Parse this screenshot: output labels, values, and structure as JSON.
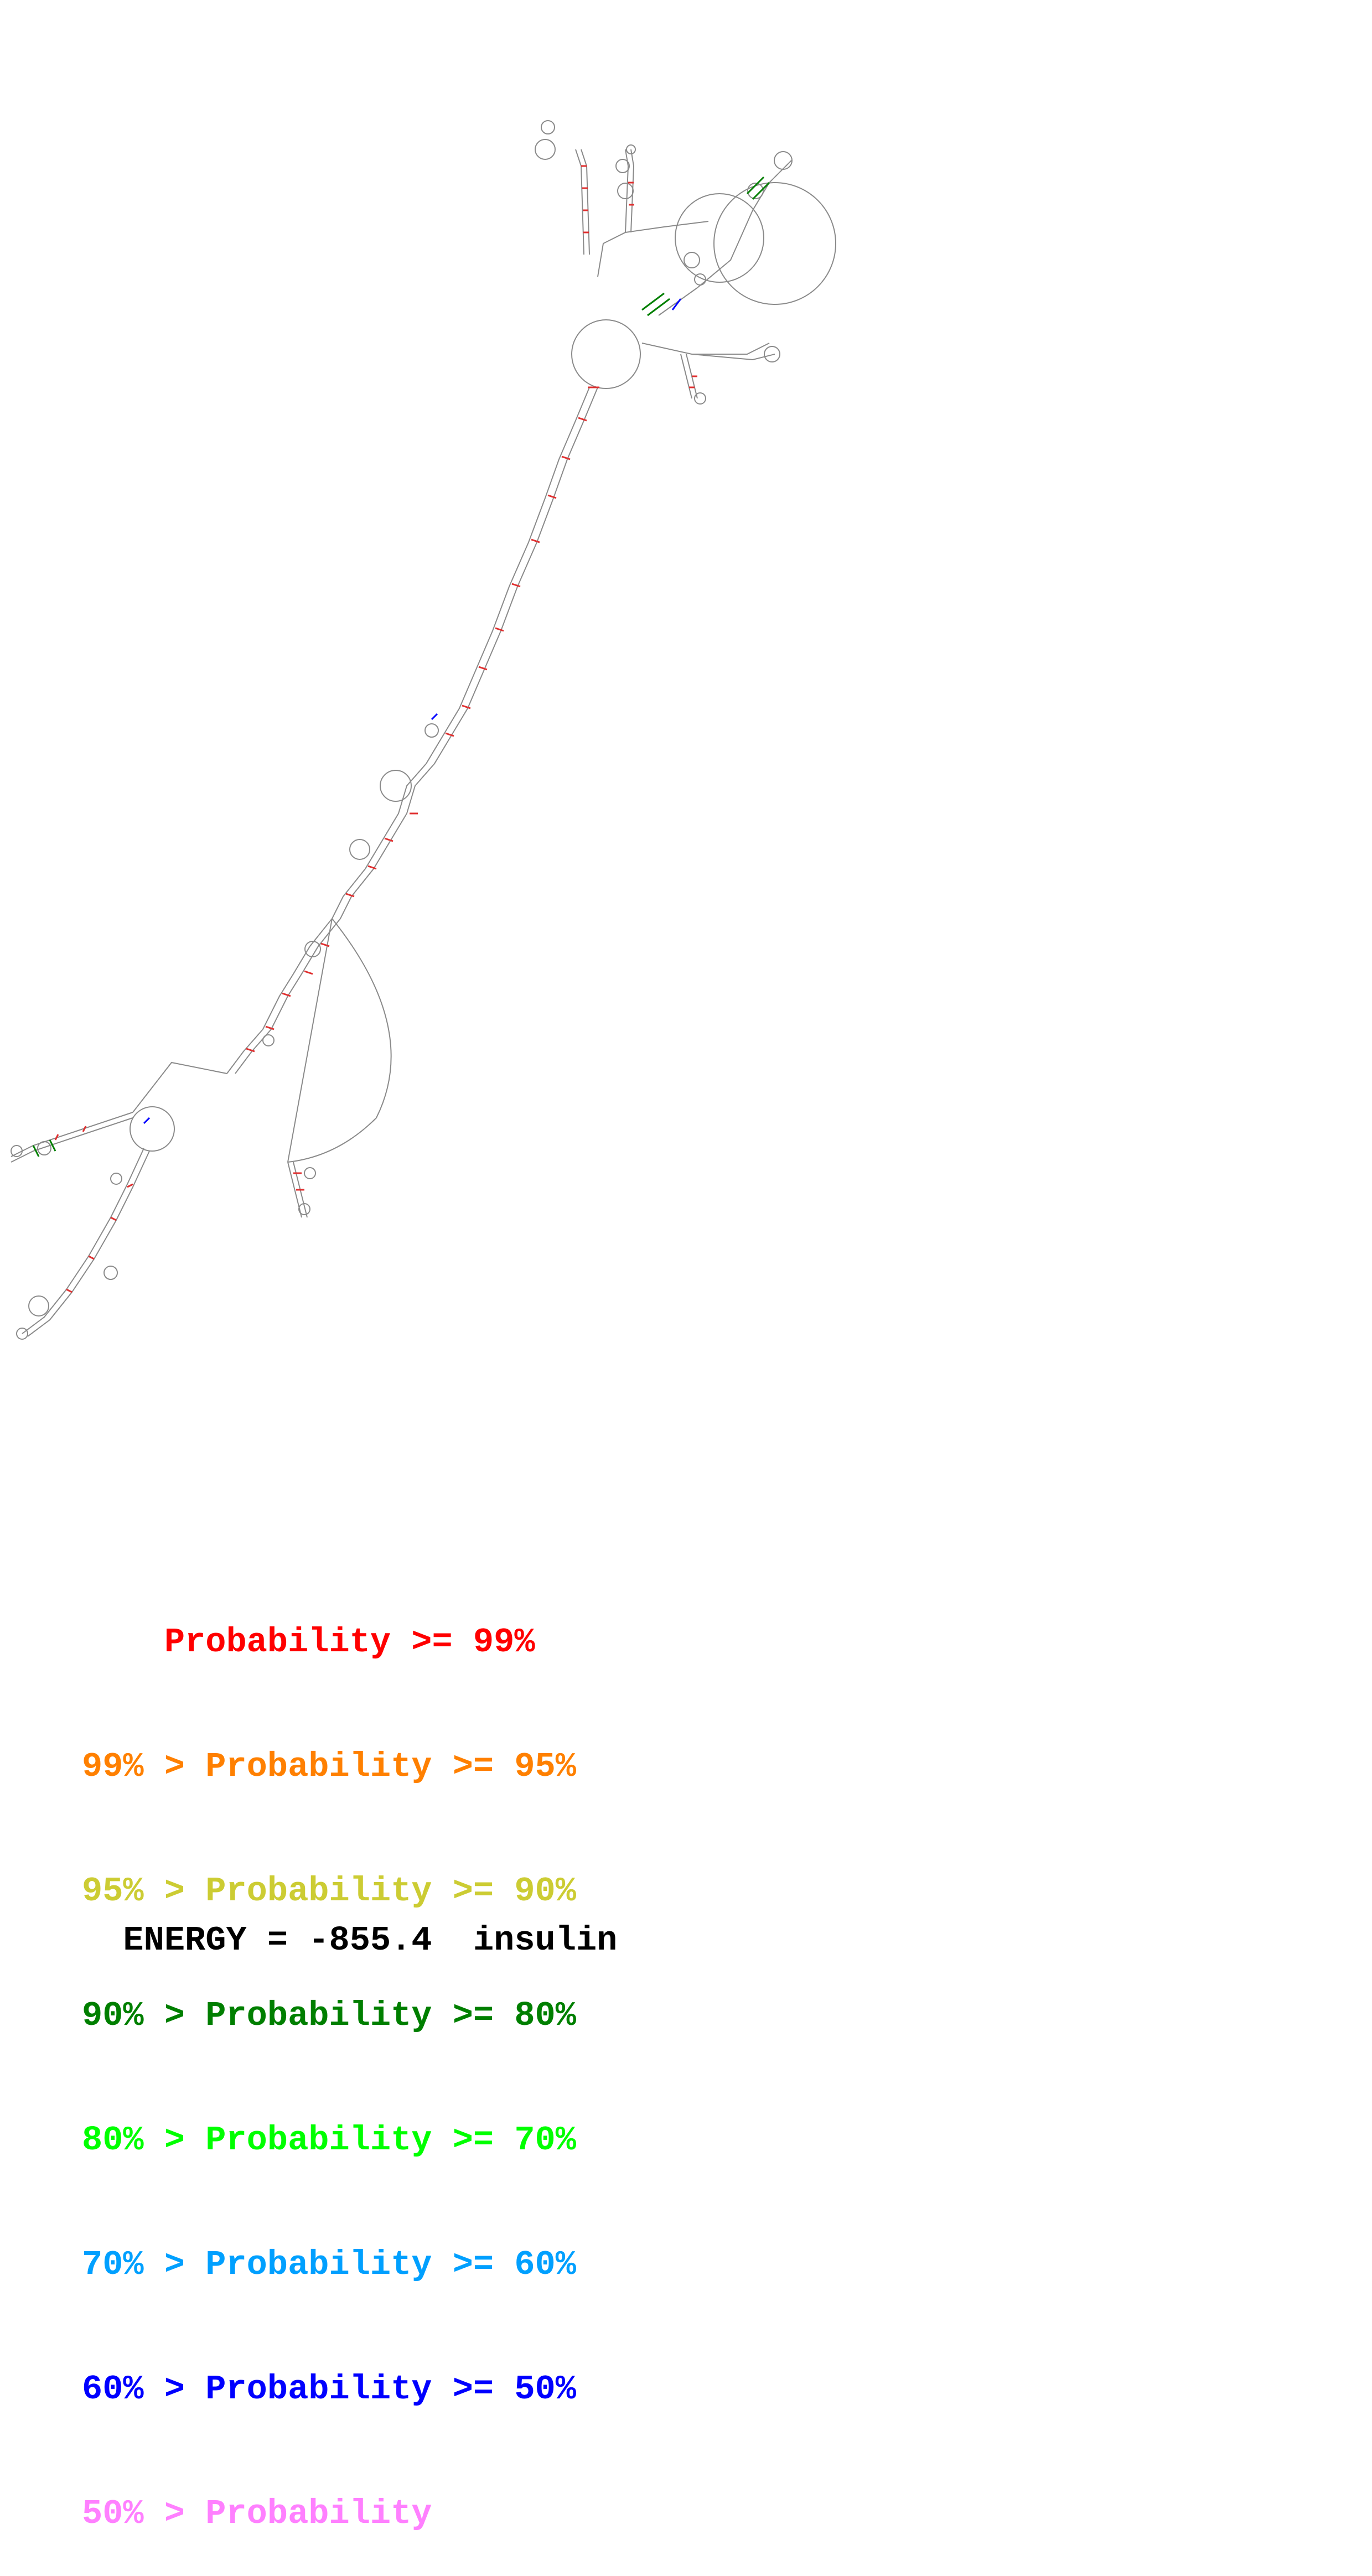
{
  "legend": {
    "rows": [
      {
        "prefix": "    ",
        "label": "Probability >= 99%",
        "color": "#ff0000"
      },
      {
        "prefix": "99% > ",
        "label": "Probability >= 95%",
        "color": "#ff8000"
      },
      {
        "prefix": "95% > ",
        "label": "Probability >= 90%",
        "color": "#cccc33"
      },
      {
        "prefix": "90% > ",
        "label": "Probability >= 80%",
        "color": "#007f00"
      },
      {
        "prefix": "80% > ",
        "label": "Probability >= 70%",
        "color": "#00ff00"
      },
      {
        "prefix": "70% > ",
        "label": "Probability >= 60%",
        "color": "#00a0ff"
      },
      {
        "prefix": "60% > ",
        "label": "Probability >= 50%",
        "color": "#0000ff"
      },
      {
        "prefix": "50% > ",
        "label": "Probability",
        "color": "#ff80ff"
      }
    ]
  },
  "energy": {
    "label": "ENERGY = -855.4",
    "name": "insulin"
  },
  "structure": {
    "backbone_color": "#808080",
    "dominant_pair_color": "#ff0000"
  }
}
